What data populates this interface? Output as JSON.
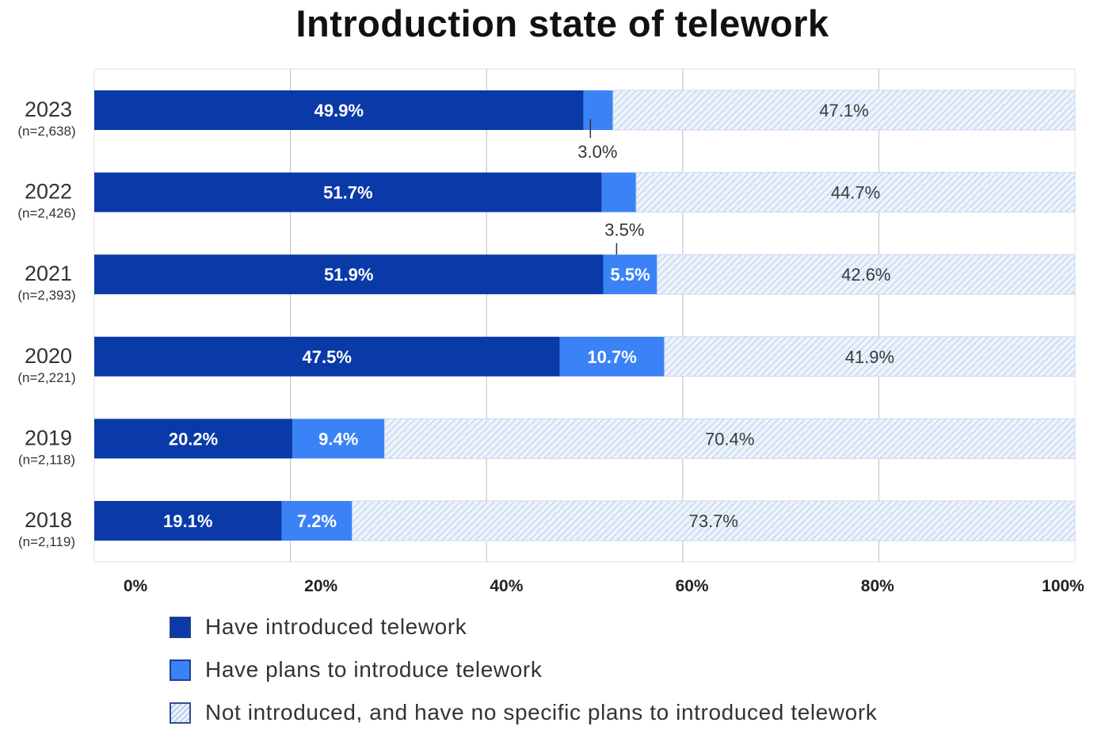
{
  "colors": {
    "introduced": "#0a3aa8",
    "plans": "#3b82f6",
    "hatch_line": "#b7cdef",
    "hatch_bg": "#eef3fb",
    "grid": "#bdbdbd"
  },
  "chart_data": {
    "type": "bar",
    "orientation": "horizontal",
    "stacked": true,
    "title": "Introduction state of telework",
    "categories": [
      "2023",
      "2022",
      "2021",
      "2020",
      "2019",
      "2018"
    ],
    "category_notes": [
      "(n=2,638)",
      "(n=2,426)",
      "(n=2,393)",
      "(n=2,221)",
      "(n=2,118)",
      "(n=2,119)"
    ],
    "x_ticks": [
      "0%",
      "20%",
      "40%",
      "60%",
      "80%",
      "100%"
    ],
    "xlim": [
      0,
      100
    ],
    "series": [
      {
        "name": "Have introduced telework",
        "values": [
          49.9,
          51.7,
          51.9,
          47.5,
          20.2,
          19.1
        ],
        "labels": [
          "49.9%",
          "51.7%",
          "51.9%",
          "47.5%",
          "20.2%",
          "19.1%"
        ]
      },
      {
        "name": "Have plans to introduce telework",
        "values": [
          3.0,
          3.5,
          5.5,
          10.7,
          9.4,
          7.2
        ],
        "labels": [
          "3.0%",
          "3.5%",
          "5.5%",
          "10.7%",
          "9.4%",
          "7.2%"
        ]
      },
      {
        "name": "Not introduced, and have no specific plans to introduced telework",
        "values": [
          47.1,
          44.7,
          42.6,
          41.9,
          70.4,
          73.7
        ],
        "labels": [
          "47.1%",
          "44.7%",
          "42.6%",
          "41.9%",
          "70.4%",
          "73.7%"
        ]
      }
    ],
    "grid": true,
    "legend_position": "bottom"
  }
}
